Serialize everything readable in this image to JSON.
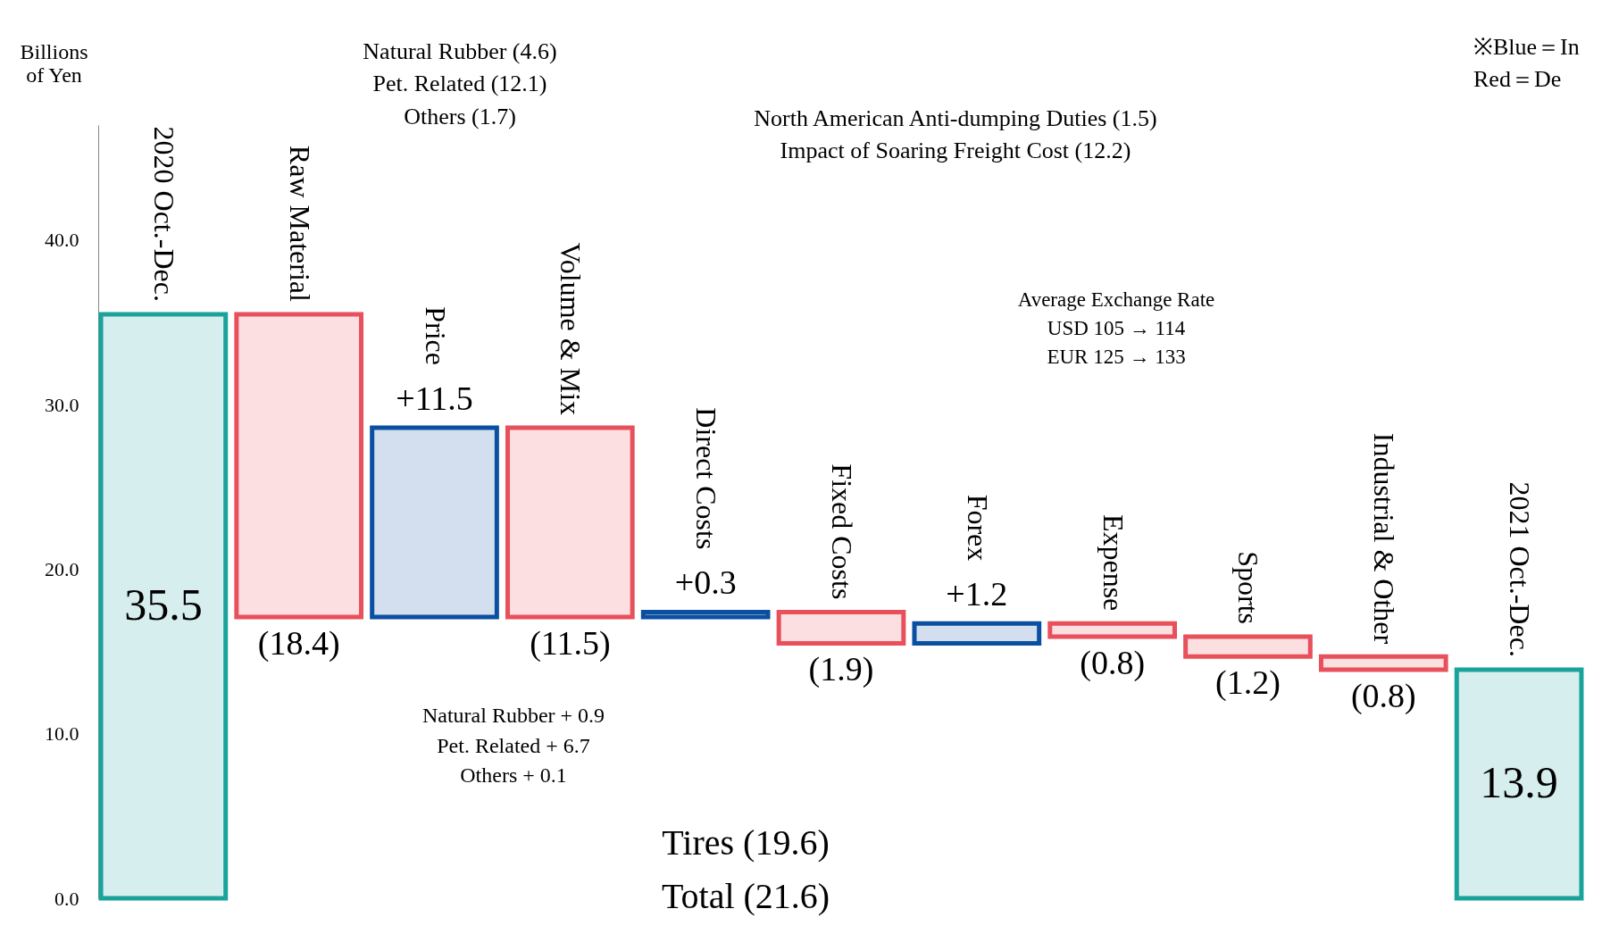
{
  "chart_data": {
    "type": "bar",
    "ylabel": "Billions\nof Yen",
    "categories": [
      "2020 Oct.-Dec.",
      "Raw Material",
      "Price",
      "Volume & Mix",
      "Direct Costs",
      "Fixed Costs",
      "Forex",
      "Expense",
      "Sports",
      "Industrial & Other",
      "2021 Oct.-Dec."
    ],
    "values": [
      35.5,
      -18.4,
      11.5,
      -11.5,
      0.3,
      -1.9,
      1.2,
      -0.8,
      -1.2,
      -0.8,
      13.9
    ],
    "base": [
      0,
      35.5,
      17.1,
      28.6,
      17.1,
      17.4,
      15.5,
      16.7,
      15.9,
      14.7,
      0
    ],
    "colors": [
      "#1aa39a",
      "#e8505b",
      "#0b4fa0",
      "#e8505b",
      "#0b4fa0",
      "#e8505b",
      "#0b4fa0",
      "#e8505b",
      "#e8505b",
      "#e8505b",
      "#1aa39a"
    ],
    "value_labels": [
      "35.5",
      "(18.4)",
      "+11.5",
      "(11.5)",
      "+0.3",
      "(1.9)",
      "+1.2",
      "(0.8)",
      "(1.2)",
      "(0.8)",
      "13.9"
    ],
    "ylim": [
      0,
      47
    ],
    "yticks": [
      {
        "value": 0,
        "label": "0.0"
      },
      {
        "value": 10,
        "label": "10.0"
      },
      {
        "value": 20,
        "label": "20.0"
      },
      {
        "value": 30,
        "label": "30.0"
      },
      {
        "value": 40,
        "label": "40.0"
      }
    ],
    "grid": false,
    "annotations": [
      "Natural Rubber (4.6)\nPet. Related (12.1)\nOthers (1.7)",
      "North American Anti-dumping Duties (1.5)\nImpact of Soaring Freight Cost (12.2)",
      "Average Exchange Rate\nUSD 105 → 114\nEUR 125 → 133",
      "Natural Rubber + 0.9\nPet. Related + 6.7\nOthers + 0.1",
      "Tires (19.6)",
      "Total (21.6)",
      "※Blue＝In\nRed＝De"
    ]
  }
}
